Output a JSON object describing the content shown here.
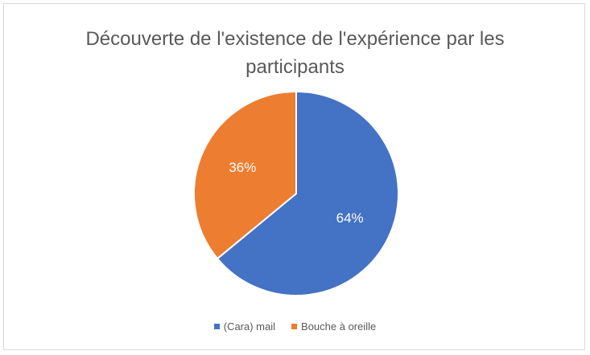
{
  "chart_data": {
    "type": "pie",
    "title_line1": "Découverte de l'existence de l'expérience par les",
    "title_line2": "participants",
    "slices": [
      {
        "name": "(Cara) mail",
        "value": 64,
        "label": "64%",
        "color": "#4472C4"
      },
      {
        "name": "Bouche à oreille",
        "value": 36,
        "label": "36%",
        "color": "#ED7D31"
      }
    ],
    "legend_position": "bottom"
  }
}
